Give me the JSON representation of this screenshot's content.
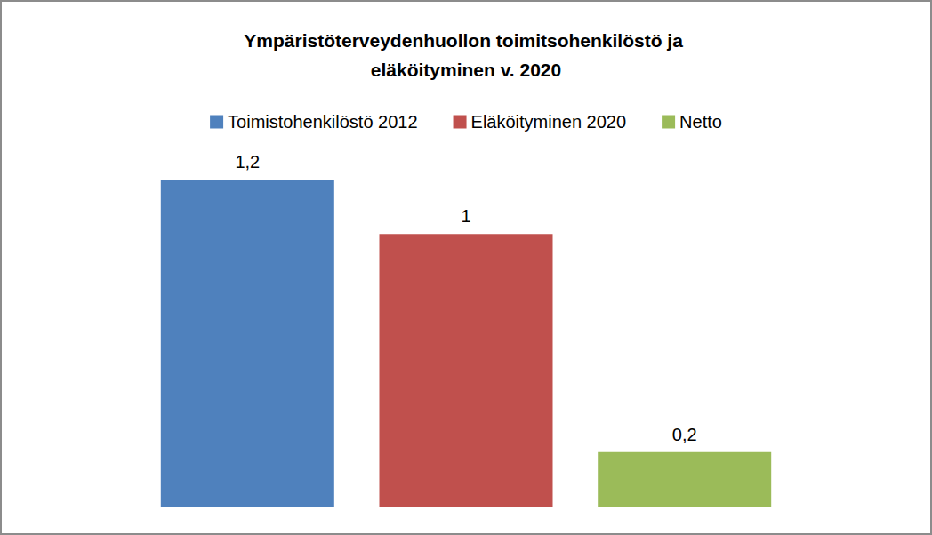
{
  "chart_data": {
    "type": "bar",
    "title": "Ympäristöterveydenhuollon toimitsohenkilöstö ja eläköityminen v. 2020",
    "categories": [
      null
    ],
    "series": [
      {
        "name": "Toimistohenkilöstö 2012",
        "color": "#4f81bd",
        "values": [
          1.2
        ],
        "value_labels": [
          "1,2"
        ]
      },
      {
        "name": "Eläköityminen 2020",
        "color": "#c0504d",
        "values": [
          1
        ],
        "value_labels": [
          "1"
        ]
      },
      {
        "name": "Netto",
        "color": "#9bbb59",
        "values": [
          0.2
        ],
        "value_labels": [
          "0,2"
        ]
      }
    ],
    "legend": "top",
    "data_labels": true,
    "tick_labels": false,
    "grid": false
  }
}
